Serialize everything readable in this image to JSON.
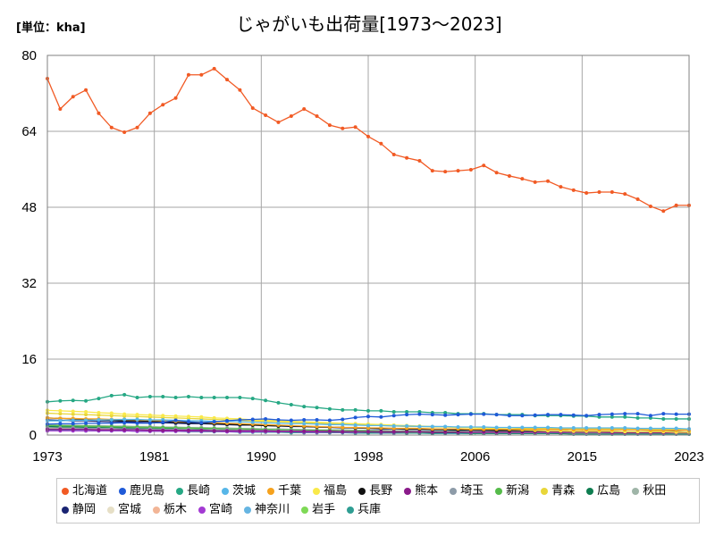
{
  "chart_data": {
    "type": "line",
    "title": "じゃがいも出荷量[1973～2023]",
    "unit_label": "[単位：kha]",
    "xlabel": "",
    "ylabel": "",
    "xlim": [
      1973,
      2023
    ],
    "ylim": [
      0,
      80
    ],
    "x_tick_labels": [
      "1973",
      "1981",
      "1990",
      "1998",
      "2006",
      "2015",
      "2023"
    ],
    "y_ticks": [
      0,
      16,
      32,
      48,
      64,
      80
    ],
    "grid": true,
    "legend_position": "bottom",
    "x": [
      1973,
      1974,
      1975,
      1976,
      1977,
      1978,
      1979,
      1980,
      1981,
      1982,
      1983,
      1984,
      1985,
      1986,
      1987,
      1988,
      1989,
      1990,
      1991,
      1992,
      1993,
      1994,
      1995,
      1996,
      1997,
      1998,
      1999,
      2000,
      2001,
      2002,
      2003,
      2004,
      2005,
      2006,
      2007,
      2008,
      2009,
      2010,
      2011,
      2012,
      2013,
      2014,
      2015,
      2016,
      2017,
      2018,
      2019,
      2020,
      2021,
      2022,
      2023
    ],
    "series": [
      {
        "name": "北海道",
        "color": "#f15a24",
        "values": [
          75.1,
          68.7,
          71.3,
          72.7,
          67.8,
          64.8,
          63.8,
          64.8,
          67.8,
          69.6,
          71.0,
          75.9,
          75.9,
          77.2,
          74.9,
          72.7,
          68.9,
          67.4,
          65.9,
          67.2,
          68.7,
          67.2,
          65.3,
          64.6,
          64.9,
          62.9,
          61.4,
          59.1,
          58.4,
          57.8,
          55.7,
          55.5,
          55.7,
          55.9,
          56.8,
          55.3,
          54.6,
          54.0,
          53.3,
          53.5,
          52.3,
          51.6,
          51.0,
          51.2,
          51.2,
          50.8,
          49.7,
          48.2,
          47.2,
          48.4,
          48.4
        ]
      },
      {
        "name": "鹿児島",
        "color": "#1f5ad8",
        "values": [
          2.3,
          2.4,
          2.4,
          2.5,
          2.5,
          2.5,
          2.6,
          2.5,
          2.5,
          2.7,
          3.1,
          2.8,
          2.6,
          2.8,
          3.0,
          3.2,
          3.3,
          3.4,
          3.2,
          3.1,
          3.2,
          3.2,
          3.1,
          3.3,
          3.7,
          3.9,
          3.8,
          4.1,
          4.3,
          4.4,
          4.3,
          4.2,
          4.3,
          4.4,
          4.4,
          4.3,
          4.1,
          4.1,
          4.2,
          4.3,
          4.3,
          4.2,
          4.1,
          4.3,
          4.4,
          4.5,
          4.5,
          4.1,
          4.5,
          4.4,
          4.4
        ]
      },
      {
        "name": "長崎",
        "color": "#26a884",
        "values": [
          7.0,
          7.2,
          7.3,
          7.2,
          7.7,
          8.3,
          8.5,
          7.9,
          8.1,
          8.1,
          7.9,
          8.1,
          7.9,
          7.9,
          7.9,
          7.9,
          7.7,
          7.3,
          6.8,
          6.4,
          6.0,
          5.8,
          5.5,
          5.3,
          5.3,
          5.1,
          5.1,
          4.9,
          4.9,
          4.9,
          4.7,
          4.7,
          4.5,
          4.5,
          4.5,
          4.3,
          4.3,
          4.3,
          4.1,
          4.1,
          4.1,
          4.0,
          4.0,
          3.8,
          3.8,
          3.8,
          3.6,
          3.6,
          3.4,
          3.4,
          3.4
        ]
      },
      {
        "name": "茨城",
        "color": "#57b6e8",
        "values": [
          3.0,
          3.0,
          3.1,
          3.1,
          3.2,
          3.2,
          3.3,
          3.3,
          3.2,
          3.2,
          3.1,
          3.0,
          3.0,
          2.9,
          2.9,
          2.8,
          2.7,
          2.6,
          2.5,
          2.4,
          2.4,
          2.3,
          2.2,
          2.2,
          2.1,
          2.0,
          2.0,
          1.9,
          1.9,
          1.8,
          1.8,
          1.8,
          1.7,
          1.7,
          1.7,
          1.6,
          1.6,
          1.6,
          1.6,
          1.6,
          1.5,
          1.5,
          1.5,
          1.5,
          1.5,
          1.5,
          1.4,
          1.4,
          1.4,
          1.4,
          1.3
        ]
      },
      {
        "name": "千葉",
        "color": "#f6a21d",
        "values": [
          3.6,
          3.5,
          3.5,
          3.4,
          3.4,
          3.3,
          3.3,
          3.2,
          3.1,
          3.0,
          2.9,
          2.8,
          2.7,
          2.6,
          2.5,
          2.4,
          2.3,
          2.2,
          2.1,
          2.0,
          1.9,
          1.8,
          1.7,
          1.6,
          1.6,
          1.5,
          1.5,
          1.4,
          1.4,
          1.4,
          1.3,
          1.3,
          1.3,
          1.2,
          1.2,
          1.2,
          1.2,
          1.2,
          1.2,
          1.2,
          1.2,
          1.1,
          1.1,
          1.1,
          1.1,
          1.1,
          1.1,
          1.0,
          1.0,
          1.0,
          1.0
        ]
      },
      {
        "name": "福島",
        "color": "#f9e94a",
        "values": [
          5.2,
          5.1,
          5.0,
          4.9,
          4.7,
          4.6,
          4.4,
          4.3,
          4.2,
          4.1,
          4.0,
          3.9,
          3.8,
          3.6,
          3.5,
          3.4,
          3.2,
          3.1,
          3.0,
          2.9,
          2.8,
          2.7,
          2.6,
          2.5,
          2.4,
          2.3,
          2.2,
          2.1,
          2.0,
          1.9,
          1.8,
          1.7,
          1.6,
          1.5,
          1.4,
          1.3,
          1.2,
          1.1,
          1.0,
          0.9,
          0.9,
          0.8,
          0.8,
          0.8,
          0.8,
          0.7,
          0.7,
          0.7,
          0.7,
          0.6,
          0.6
        ]
      },
      {
        "name": "長野",
        "color": "#111111",
        "values": [
          3.6,
          3.5,
          3.4,
          3.3,
          3.2,
          3.1,
          3.0,
          3.0,
          2.9,
          2.8,
          2.7,
          2.6,
          2.5,
          2.4,
          2.3,
          2.2,
          2.1,
          2.0,
          1.9,
          1.9,
          1.8,
          1.7,
          1.7,
          1.6,
          1.5,
          1.5,
          1.4,
          1.4,
          1.3,
          1.3,
          1.2,
          1.2,
          1.1,
          1.1,
          1.1,
          1.0,
          1.0,
          1.0,
          0.9,
          0.9,
          0.9,
          0.8,
          0.8,
          0.8,
          0.8,
          0.7,
          0.7,
          0.7,
          0.7,
          0.7,
          0.6
        ]
      },
      {
        "name": "熊本",
        "color": "#8a1a8a",
        "values": [
          1.2,
          1.2,
          1.2,
          1.2,
          1.1,
          1.1,
          1.1,
          1.1,
          1.0,
          1.0,
          1.0,
          1.0,
          1.0,
          0.9,
          0.9,
          0.9,
          0.9,
          0.9,
          0.8,
          0.8,
          0.8,
          0.8,
          0.8,
          0.7,
          0.7,
          0.7,
          0.7,
          0.7,
          0.7,
          0.7,
          0.6,
          0.6,
          0.6,
          0.6,
          0.6,
          0.6,
          0.6,
          0.6,
          0.6,
          0.6,
          0.6,
          0.6,
          0.6,
          0.6,
          0.5,
          0.5,
          0.5,
          0.5,
          0.5,
          0.5,
          0.5
        ]
      },
      {
        "name": "埼玉",
        "color": "#8d9ba8",
        "values": [
          1.5,
          1.5,
          1.5,
          1.4,
          1.4,
          1.4,
          1.3,
          1.3,
          1.3,
          1.2,
          1.2,
          1.2,
          1.1,
          1.1,
          1.1,
          1.0,
          1.0,
          1.0,
          0.9,
          0.9,
          0.9,
          0.8,
          0.8,
          0.8,
          0.7,
          0.7,
          0.7,
          0.7,
          0.6,
          0.6,
          0.6,
          0.6,
          0.6,
          0.5,
          0.5,
          0.5,
          0.5,
          0.5,
          0.5,
          0.5,
          0.5,
          0.4,
          0.4,
          0.4,
          0.4,
          0.4,
          0.4,
          0.4,
          0.4,
          0.4,
          0.4
        ]
      },
      {
        "name": "新潟",
        "color": "#55bb4a",
        "values": [
          2.0,
          2.0,
          1.9,
          1.9,
          1.8,
          1.8,
          1.7,
          1.7,
          1.6,
          1.6,
          1.5,
          1.5,
          1.4,
          1.4,
          1.3,
          1.3,
          1.2,
          1.2,
          1.1,
          1.1,
          1.0,
          1.0,
          1.0,
          0.9,
          0.9,
          0.9,
          0.8,
          0.8,
          0.8,
          0.7,
          0.7,
          0.7,
          0.7,
          0.6,
          0.6,
          0.6,
          0.6,
          0.6,
          0.5,
          0.5,
          0.5,
          0.5,
          0.5,
          0.5,
          0.5,
          0.4,
          0.4,
          0.4,
          0.4,
          0.4,
          0.4
        ]
      },
      {
        "name": "青森",
        "color": "#e8d63a",
        "values": [
          4.6,
          4.5,
          4.4,
          4.3,
          4.2,
          4.1,
          4.0,
          3.9,
          3.8,
          3.7,
          3.6,
          3.5,
          3.4,
          3.3,
          3.2,
          3.1,
          3.0,
          2.9,
          2.8,
          2.7,
          2.6,
          2.5,
          2.4,
          2.3,
          2.2,
          2.1,
          2.0,
          1.9,
          1.8,
          1.8,
          1.7,
          1.7,
          1.6,
          1.6,
          1.5,
          1.5,
          1.5,
          1.4,
          1.4,
          1.4,
          1.4,
          1.3,
          1.3,
          1.3,
          1.3,
          1.3,
          1.2,
          1.2,
          1.2,
          1.2,
          1.2
        ]
      },
      {
        "name": "広島",
        "color": "#0e7d50",
        "values": [
          1.8,
          1.7,
          1.7,
          1.6,
          1.6,
          1.5,
          1.5,
          1.4,
          1.4,
          1.3,
          1.3,
          1.2,
          1.2,
          1.1,
          1.1,
          1.0,
          1.0,
          0.9,
          0.9,
          0.8,
          0.8,
          0.8,
          0.7,
          0.7,
          0.7,
          0.6,
          0.6,
          0.6,
          0.5,
          0.5,
          0.5,
          0.5,
          0.5,
          0.4,
          0.4,
          0.4,
          0.4,
          0.4,
          0.4,
          0.4,
          0.3,
          0.3,
          0.3,
          0.3,
          0.3,
          0.3,
          0.3,
          0.3,
          0.3,
          0.3,
          0.3
        ]
      },
      {
        "name": "秋田",
        "color": "#9fb5a8",
        "values": [
          2.2,
          2.1,
          2.1,
          2.0,
          2.0,
          1.9,
          1.9,
          1.8,
          1.8,
          1.7,
          1.7,
          1.6,
          1.6,
          1.5,
          1.5,
          1.4,
          1.4,
          1.3,
          1.3,
          1.2,
          1.2,
          1.1,
          1.1,
          1.1,
          1.0,
          1.0,
          1.0,
          0.9,
          0.9,
          0.9,
          0.8,
          0.8,
          0.8,
          0.8,
          0.7,
          0.7,
          0.7,
          0.7,
          0.7,
          0.6,
          0.6,
          0.6,
          0.6,
          0.6,
          0.6,
          0.6,
          0.5,
          0.5,
          0.5,
          0.5,
          0.5
        ]
      },
      {
        "name": "静岡",
        "color": "#1a2472",
        "values": [
          3.2,
          3.1,
          3.0,
          3.0,
          2.9,
          2.8,
          2.8,
          2.7,
          2.6,
          2.6,
          2.5,
          2.4,
          2.4,
          2.3,
          2.2,
          2.1,
          2.1,
          2.0,
          1.9,
          1.8,
          1.8,
          1.7,
          1.6,
          1.5,
          1.5,
          1.4,
          1.3,
          1.3,
          1.2,
          1.2,
          1.1,
          1.1,
          1.0,
          1.0,
          1.0,
          0.9,
          0.9,
          0.9,
          0.8,
          0.8,
          0.8,
          0.8,
          0.7,
          0.7,
          0.7,
          0.7,
          0.6,
          0.6,
          0.6,
          0.6,
          0.6
        ]
      },
      {
        "name": "宮城",
        "color": "#e6dfc6",
        "values": [
          1.6,
          1.6,
          1.5,
          1.5,
          1.5,
          1.4,
          1.4,
          1.4,
          1.3,
          1.3,
          1.3,
          1.2,
          1.2,
          1.2,
          1.1,
          1.1,
          1.1,
          1.0,
          1.0,
          1.0,
          0.9,
          0.9,
          0.9,
          0.8,
          0.8,
          0.8,
          0.7,
          0.7,
          0.7,
          0.7,
          0.6,
          0.6,
          0.6,
          0.6,
          0.6,
          0.5,
          0.5,
          0.5,
          0.5,
          0.5,
          0.5,
          0.5,
          0.4,
          0.4,
          0.4,
          0.4,
          0.4,
          0.4,
          0.4,
          0.4,
          0.4
        ]
      },
      {
        "name": "栃木",
        "color": "#f2b596",
        "values": [
          1.4,
          1.4,
          1.4,
          1.3,
          1.3,
          1.3,
          1.3,
          1.2,
          1.2,
          1.2,
          1.1,
          1.1,
          1.1,
          1.0,
          1.0,
          1.0,
          1.0,
          0.9,
          0.9,
          0.9,
          0.9,
          0.8,
          0.8,
          0.8,
          0.8,
          0.7,
          0.7,
          0.7,
          0.7,
          0.6,
          0.6,
          0.6,
          0.6,
          0.6,
          0.6,
          0.5,
          0.5,
          0.5,
          0.5,
          0.5,
          0.5,
          0.5,
          0.5,
          0.4,
          0.4,
          0.4,
          0.4,
          0.4,
          0.4,
          0.4,
          0.4
        ]
      },
      {
        "name": "宮崎",
        "color": "#a33ad3",
        "values": [
          0.9,
          0.9,
          0.9,
          0.9,
          0.9,
          0.9,
          0.9,
          0.8,
          0.8,
          0.8,
          0.8,
          0.8,
          0.8,
          0.8,
          0.7,
          0.7,
          0.7,
          0.7,
          0.7,
          0.7,
          0.6,
          0.6,
          0.6,
          0.6,
          0.6,
          0.6,
          0.5,
          0.5,
          0.5,
          0.5,
          0.5,
          0.5,
          0.5,
          0.5,
          0.4,
          0.4,
          0.4,
          0.4,
          0.4,
          0.4,
          0.4,
          0.4,
          0.4,
          0.4,
          0.4,
          0.4,
          0.3,
          0.3,
          0.3,
          0.3,
          0.3
        ]
      },
      {
        "name": "神奈川",
        "color": "#66b5e2",
        "values": [
          1.3,
          1.3,
          1.2,
          1.2,
          1.2,
          1.1,
          1.1,
          1.1,
          1.0,
          1.0,
          1.0,
          0.9,
          0.9,
          0.9,
          0.9,
          0.8,
          0.8,
          0.8,
          0.7,
          0.7,
          0.7,
          0.7,
          0.6,
          0.6,
          0.6,
          0.6,
          0.5,
          0.5,
          0.5,
          0.5,
          0.5,
          0.4,
          0.4,
          0.4,
          0.4,
          0.4,
          0.4,
          0.4,
          0.4,
          0.4,
          0.3,
          0.3,
          0.3,
          0.3,
          0.3,
          0.3,
          0.3,
          0.3,
          0.3,
          0.3,
          0.3
        ]
      },
      {
        "name": "岩手",
        "color": "#7ed956",
        "values": [
          1.9,
          1.9,
          1.8,
          1.8,
          1.7,
          1.7,
          1.6,
          1.6,
          1.5,
          1.5,
          1.4,
          1.4,
          1.3,
          1.3,
          1.2,
          1.2,
          1.1,
          1.1,
          1.0,
          1.0,
          1.0,
          0.9,
          0.9,
          0.9,
          0.8,
          0.8,
          0.8,
          0.7,
          0.7,
          0.7,
          0.7,
          0.6,
          0.6,
          0.6,
          0.6,
          0.6,
          0.5,
          0.5,
          0.5,
          0.5,
          0.5,
          0.5,
          0.5,
          0.5,
          0.4,
          0.4,
          0.4,
          0.4,
          0.4,
          0.4,
          0.4
        ]
      },
      {
        "name": "兵庫",
        "color": "#2f9e93",
        "values": [
          1.0,
          1.0,
          1.0,
          0.9,
          0.9,
          0.9,
          0.9,
          0.8,
          0.8,
          0.8,
          0.8,
          0.7,
          0.7,
          0.7,
          0.7,
          0.6,
          0.6,
          0.6,
          0.6,
          0.5,
          0.5,
          0.5,
          0.5,
          0.5,
          0.4,
          0.4,
          0.4,
          0.4,
          0.4,
          0.4,
          0.3,
          0.3,
          0.3,
          0.3,
          0.3,
          0.3,
          0.3,
          0.3,
          0.3,
          0.3,
          0.3,
          0.2,
          0.2,
          0.2,
          0.2,
          0.2,
          0.2,
          0.2,
          0.2,
          0.2,
          0.2
        ]
      }
    ]
  }
}
